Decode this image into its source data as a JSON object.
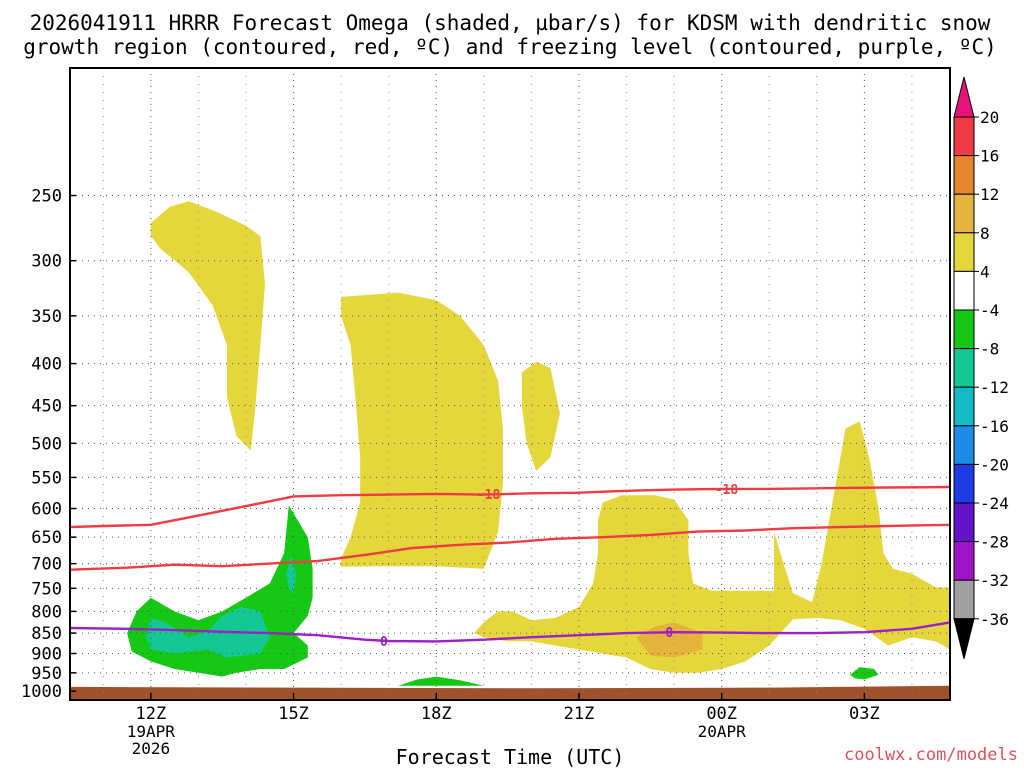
{
  "chart_data": {
    "type": "contour",
    "title_line1": "2026041911 HRRR Forecast Omega (shaded, µbar/s) for KDSM with dendritic snow",
    "title_line2": "growth region (contoured, red, ºC) and freezing level (contoured, purple, ºC)",
    "xlabel": "Forecast Time (UTC)",
    "ylabel": "",
    "watermark": "coolwx.com/models",
    "x_range_hours": [
      10.3,
      28.8
    ],
    "y_scale": "log-pressure",
    "y_range_hPa": [
      1025,
      175
    ],
    "grid": true,
    "x_ticks": [
      {
        "hour": 12,
        "label": "12Z",
        "sub1": "19APR",
        "sub2": "2026"
      },
      {
        "hour": 15,
        "label": "15Z",
        "sub1": "",
        "sub2": ""
      },
      {
        "hour": 18,
        "label": "18Z",
        "sub1": "",
        "sub2": ""
      },
      {
        "hour": 21,
        "label": "21Z",
        "sub1": "",
        "sub2": ""
      },
      {
        "hour": 24,
        "label": "00Z",
        "sub1": "20APR",
        "sub2": ""
      },
      {
        "hour": 27,
        "label": "03Z",
        "sub1": "",
        "sub2": ""
      }
    ],
    "y_ticks": [
      250,
      300,
      350,
      400,
      450,
      500,
      550,
      600,
      650,
      700,
      750,
      800,
      850,
      900,
      950,
      1000
    ],
    "colorbar": {
      "labels": [
        "20",
        "16",
        "12",
        "8",
        "4",
        "-4",
        "-8",
        "-12",
        "-16",
        "-20",
        "-24",
        "-28",
        "-32",
        "-36"
      ],
      "colors": [
        "#ef3b43",
        "#e9842e",
        "#e5b23b",
        "#e5d63c",
        "#ffffff",
        "#14c814",
        "#14c896",
        "#14b9c8",
        "#1e8ce6",
        "#1e3ce6",
        "#6414c8",
        "#a014c8",
        "#a0a0a0"
      ],
      "top_arrow_color": "#e6147a",
      "bottom_arrow_color": "#000000"
    },
    "shading_legend": {
      "yellow": "4 to 8",
      "dark_yellow": "8 to 12",
      "orange": "12 to 16",
      "green": "-4 to -8",
      "teal": "-8 to -12",
      "ground": "below ground"
    },
    "contours": [
      {
        "name": "-18",
        "color": "#ef3b43",
        "points": [
          [
            10.3,
            632
          ],
          [
            11.0,
            630
          ],
          [
            12.0,
            628
          ],
          [
            13.0,
            612
          ],
          [
            14.0,
            596
          ],
          [
            15.0,
            580
          ],
          [
            16.0,
            578
          ],
          [
            17.0,
            577
          ],
          [
            18.0,
            576
          ],
          [
            19.0,
            577
          ],
          [
            20.0,
            575
          ],
          [
            21.0,
            574
          ],
          [
            22.0,
            571
          ],
          [
            23.0,
            569
          ],
          [
            24.0,
            568
          ],
          [
            25.0,
            568
          ],
          [
            26.0,
            567
          ],
          [
            27.0,
            566
          ],
          [
            28.8,
            565
          ]
        ]
      },
      {
        "name": "-12",
        "color": "#ef3b43",
        "points": [
          [
            10.3,
            712
          ],
          [
            11.5,
            708
          ],
          [
            12.5,
            702
          ],
          [
            13.5,
            705
          ],
          [
            14.5,
            700
          ],
          [
            15.5,
            695
          ],
          [
            16.5,
            683
          ],
          [
            17.5,
            670
          ],
          [
            18.5,
            664
          ],
          [
            19.5,
            660
          ],
          [
            20.5,
            653
          ],
          [
            21.5,
            650
          ],
          [
            22.5,
            646
          ],
          [
            23.5,
            640
          ],
          [
            24.5,
            638
          ],
          [
            25.5,
            634
          ],
          [
            26.5,
            632
          ],
          [
            27.5,
            630
          ],
          [
            28.8,
            628
          ]
        ]
      },
      {
        "name": "0",
        "color": "#9d1fc6",
        "points": [
          [
            10.3,
            838
          ],
          [
            11.5,
            840
          ],
          [
            12.5,
            843
          ],
          [
            13.5,
            847
          ],
          [
            14.5,
            850
          ],
          [
            15.5,
            855
          ],
          [
            16.5,
            866
          ],
          [
            17.0,
            869
          ],
          [
            18.0,
            870
          ],
          [
            19.0,
            866
          ],
          [
            20.0,
            860
          ],
          [
            21.0,
            855
          ],
          [
            22.0,
            850
          ],
          [
            23.0,
            848
          ],
          [
            24.0,
            849
          ],
          [
            25.0,
            850
          ],
          [
            26.0,
            850
          ],
          [
            27.0,
            848
          ],
          [
            28.0,
            840
          ],
          [
            28.8,
            825
          ]
        ]
      }
    ],
    "contour_labels": [
      {
        "text": "-18",
        "hour": 19.1,
        "p": 576,
        "color": "#ef3b43"
      },
      {
        "text": "-18",
        "hour": 24.1,
        "p": 568,
        "color": "#ef3b43"
      },
      {
        "text": "0",
        "hour": 16.9,
        "p": 869,
        "color": "#9d1fc6"
      },
      {
        "text": "0",
        "hour": 22.9,
        "p": 848,
        "color": "#9d1fc6"
      }
    ],
    "regions": [
      {
        "value": "yellow",
        "color": "#e5d63c",
        "points": [
          [
            12.0,
            270
          ],
          [
            12.4,
            258
          ],
          [
            12.8,
            254
          ],
          [
            13.4,
            262
          ],
          [
            14.0,
            272
          ],
          [
            14.3,
            280
          ],
          [
            14.4,
            320
          ],
          [
            14.3,
            380
          ],
          [
            14.2,
            450
          ],
          [
            14.1,
            510
          ],
          [
            13.8,
            490
          ],
          [
            13.6,
            440
          ],
          [
            13.6,
            380
          ],
          [
            13.3,
            340
          ],
          [
            12.8,
            310
          ],
          [
            12.2,
            290
          ],
          [
            12.0,
            280
          ]
        ]
      },
      {
        "value": "yellow",
        "color": "#e5d63c",
        "points": [
          [
            16.0,
            332
          ],
          [
            16.6,
            330
          ],
          [
            17.2,
            328
          ],
          [
            18.0,
            335
          ],
          [
            18.5,
            350
          ],
          [
            19.0,
            380
          ],
          [
            19.3,
            420
          ],
          [
            19.4,
            480
          ],
          [
            19.4,
            560
          ],
          [
            19.3,
            640
          ],
          [
            19.0,
            710
          ],
          [
            18.0,
            705
          ],
          [
            17.0,
            705
          ],
          [
            16.0,
            706
          ],
          [
            16.0,
            690
          ],
          [
            16.2,
            650
          ],
          [
            16.4,
            590
          ],
          [
            16.4,
            520
          ],
          [
            16.3,
            440
          ],
          [
            16.2,
            380
          ],
          [
            16.0,
            350
          ]
        ]
      },
      {
        "value": "yellow",
        "color": "#e5d63c",
        "points": [
          [
            19.8,
            410
          ],
          [
            20.1,
            398
          ],
          [
            20.4,
            405
          ],
          [
            20.6,
            460
          ],
          [
            20.4,
            520
          ],
          [
            20.1,
            540
          ],
          [
            19.9,
            500
          ],
          [
            19.8,
            450
          ]
        ]
      },
      {
        "value": "yellow",
        "color": "#e5d63c",
        "points": [
          [
            21.5,
            590
          ],
          [
            21.9,
            578
          ],
          [
            22.6,
            578
          ],
          [
            23.0,
            585
          ],
          [
            23.3,
            620
          ],
          [
            23.3,
            680
          ],
          [
            23.4,
            740
          ],
          [
            23.8,
            755
          ],
          [
            25.1,
            755
          ],
          [
            25.1,
            640
          ],
          [
            25.3,
            700
          ],
          [
            25.5,
            760
          ],
          [
            25.9,
            780
          ],
          [
            26.1,
            700
          ],
          [
            26.4,
            560
          ],
          [
            26.6,
            480
          ],
          [
            26.9,
            470
          ],
          [
            27.1,
            520
          ],
          [
            27.3,
            600
          ],
          [
            27.4,
            680
          ],
          [
            27.6,
            710
          ],
          [
            28.0,
            720
          ],
          [
            28.5,
            748
          ],
          [
            28.8,
            748
          ],
          [
            28.8,
            890
          ],
          [
            28.5,
            870
          ],
          [
            28.0,
            860
          ],
          [
            27.5,
            880
          ],
          [
            27.0,
            840
          ],
          [
            26.5,
            820
          ],
          [
            26.0,
            815
          ],
          [
            25.5,
            818
          ],
          [
            25.0,
            880
          ],
          [
            24.5,
            920
          ],
          [
            24.0,
            940
          ],
          [
            23.5,
            950
          ],
          [
            23.0,
            950
          ],
          [
            22.5,
            940
          ],
          [
            22.0,
            910
          ],
          [
            21.5,
            900
          ],
          [
            21.0,
            890
          ],
          [
            20.5,
            880
          ],
          [
            20.0,
            870
          ],
          [
            19.5,
            870
          ],
          [
            19.0,
            860
          ],
          [
            18.8,
            850
          ],
          [
            19.0,
            825
          ],
          [
            19.3,
            800
          ],
          [
            19.6,
            800
          ],
          [
            20.0,
            820
          ],
          [
            20.5,
            815
          ],
          [
            21.0,
            790
          ],
          [
            21.3,
            740
          ],
          [
            21.4,
            680
          ],
          [
            21.4,
            620
          ]
        ]
      },
      {
        "value": "dark_yellow",
        "color": "#e5b23b",
        "points": [
          [
            22.2,
            860
          ],
          [
            22.6,
            835
          ],
          [
            23.0,
            825
          ],
          [
            23.6,
            850
          ],
          [
            23.6,
            890
          ],
          [
            23.0,
            910
          ],
          [
            22.5,
            905
          ]
        ]
      },
      {
        "value": "green",
        "color": "#14c814",
        "points": [
          [
            11.5,
            850
          ],
          [
            11.7,
            800
          ],
          [
            12.0,
            770
          ],
          [
            12.5,
            800
          ],
          [
            13.0,
            820
          ],
          [
            13.5,
            800
          ],
          [
            14.0,
            770
          ],
          [
            14.5,
            740
          ],
          [
            14.8,
            680
          ],
          [
            14.9,
            595
          ],
          [
            15.3,
            650
          ],
          [
            15.4,
            710
          ],
          [
            15.4,
            770
          ],
          [
            15.3,
            810
          ],
          [
            15.0,
            850
          ],
          [
            15.3,
            880
          ],
          [
            15.3,
            910
          ],
          [
            14.8,
            940
          ],
          [
            14.3,
            940
          ],
          [
            13.8,
            950
          ],
          [
            13.5,
            960
          ],
          [
            13.0,
            950
          ],
          [
            12.5,
            940
          ],
          [
            12.0,
            920
          ],
          [
            11.6,
            895
          ]
        ]
      },
      {
        "value": "teal",
        "color": "#14c896",
        "points": [
          [
            11.9,
            860
          ],
          [
            12.0,
            815
          ],
          [
            12.3,
            825
          ],
          [
            12.8,
            860
          ],
          [
            13.2,
            845
          ],
          [
            13.5,
            810
          ],
          [
            13.9,
            790
          ],
          [
            14.3,
            800
          ],
          [
            14.5,
            860
          ],
          [
            14.3,
            900
          ],
          [
            13.6,
            910
          ],
          [
            13.2,
            890
          ],
          [
            12.5,
            900
          ],
          [
            12.0,
            890
          ]
        ]
      },
      {
        "value": "teal",
        "color": "#14c896",
        "points": [
          [
            14.85,
            720
          ],
          [
            14.95,
            685
          ],
          [
            15.05,
            720
          ],
          [
            15.0,
            760
          ],
          [
            14.9,
            750
          ]
        ]
      },
      {
        "value": "green",
        "color": "#14c814",
        "points": [
          [
            17.2,
            985
          ],
          [
            17.6,
            968
          ],
          [
            18.0,
            960
          ],
          [
            18.5,
            970
          ],
          [
            19.0,
            985
          ]
        ]
      },
      {
        "value": "green",
        "color": "#14c814",
        "points": [
          [
            26.7,
            955
          ],
          [
            26.9,
            935
          ],
          [
            27.2,
            940
          ],
          [
            27.3,
            955
          ],
          [
            27.0,
            968
          ],
          [
            26.8,
            965
          ]
        ]
      },
      {
        "value": "ground",
        "color": "#a0522d",
        "points": [
          [
            10.3,
            988
          ],
          [
            15.0,
            990
          ],
          [
            20.0,
            992
          ],
          [
            25.0,
            990
          ],
          [
            28.8,
            985
          ],
          [
            28.8,
            1025
          ],
          [
            10.3,
            1025
          ]
        ]
      }
    ]
  }
}
